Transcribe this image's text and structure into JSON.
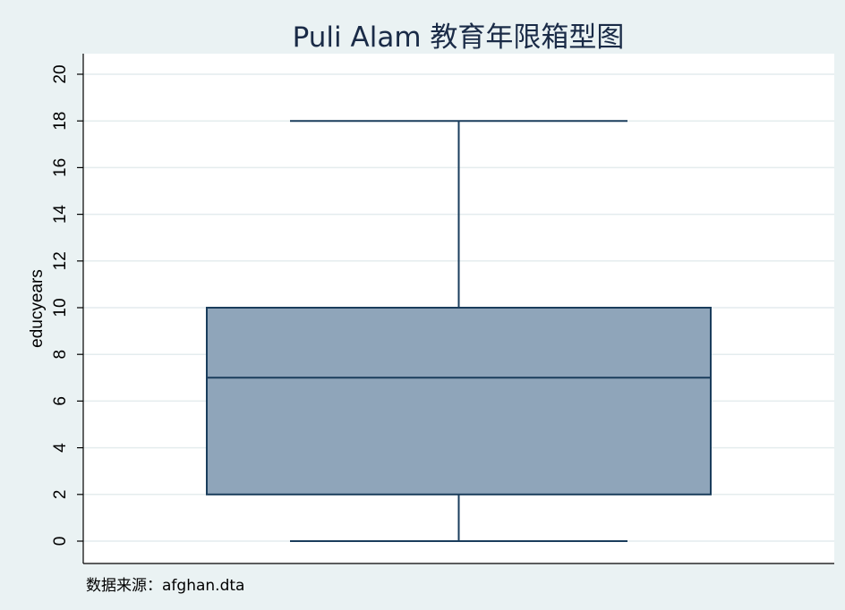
{
  "chart_data": {
    "type": "box",
    "title": "Puli Alam 教育年限箱型图",
    "ylabel": "educyears",
    "ylim": [
      0,
      20
    ],
    "yticks": [
      0,
      2,
      4,
      6,
      8,
      10,
      12,
      14,
      16,
      18,
      20
    ],
    "grid": true,
    "box": {
      "min": 0,
      "q1": 2,
      "median": 7,
      "q3": 10,
      "max": 18
    },
    "note": "数据来源：afghan.dta",
    "colors": {
      "background": "#eaf2f3",
      "plot": "#ffffff",
      "box_fill": "#8fa5ba",
      "box_line": "#1a3d5c",
      "grid": "#e4ecee",
      "title": "#1a2b47"
    }
  }
}
